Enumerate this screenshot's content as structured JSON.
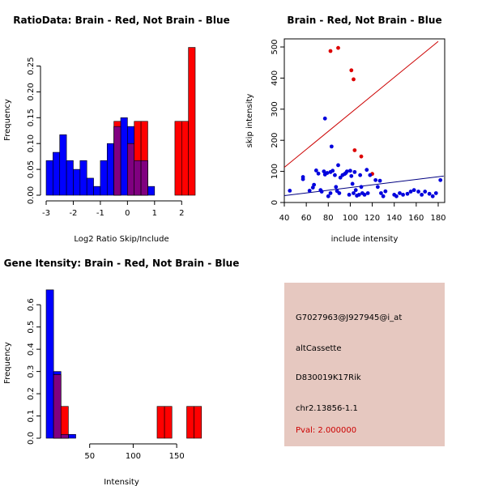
{
  "colors": {
    "red": "#ff0000",
    "blue": "#0000ff",
    "purple": "#800080",
    "point_red": "#dd0000",
    "point_blue": "#0000dd",
    "line_red": "#cc0000",
    "line_blue": "#000080",
    "panel_bg": "#e6c8c0"
  },
  "chart_data": [
    {
      "type": "bar",
      "title": "RatioData: Brain - Red, Not Brain - Blue",
      "xlabel": "Log2 Ratio Skip/Include",
      "ylabel": "Frequency",
      "xlim": [
        -3,
        2.5
      ],
      "ylim": [
        0,
        0.29
      ],
      "xticks": [
        -3,
        -2,
        -1,
        0,
        1,
        2
      ],
      "yticks": [
        0,
        0.05,
        0.1,
        0.15,
        0.2,
        0.25
      ],
      "ytick_labels": [
        "0.00",
        "0.05",
        "0.10",
        "0.15",
        "0.20",
        "0.25"
      ],
      "xtick_labels": [
        "-3",
        "-2",
        "-1",
        "0",
        "1",
        "2"
      ],
      "bin_width": 0.25,
      "series": [
        {
          "name": "Not Brain",
          "color": "blue",
          "bins": [
            [
              -3.0,
              0.067
            ],
            [
              -2.75,
              0.083
            ],
            [
              -2.5,
              0.117
            ],
            [
              -2.25,
              0.067
            ],
            [
              -2.0,
              0.05
            ],
            [
              -1.75,
              0.067
            ],
            [
              -1.5,
              0.033
            ],
            [
              -1.25,
              0.017
            ],
            [
              -1.0,
              0.067
            ],
            [
              -0.75,
              0.1
            ],
            [
              -0.5,
              0.133
            ],
            [
              -0.25,
              0.15
            ],
            [
              0.0,
              0.133
            ],
            [
              0.25,
              0.067
            ],
            [
              0.5,
              0.067
            ],
            [
              0.75,
              0.017
            ]
          ]
        },
        {
          "name": "Brain",
          "color": "red",
          "bins": [
            [
              -0.5,
              0.143
            ],
            [
              0.0,
              0.1
            ],
            [
              0.25,
              0.143
            ],
            [
              0.5,
              0.143
            ],
            [
              1.75,
              0.143
            ],
            [
              2.0,
              0.143
            ],
            [
              2.25,
              0.286
            ]
          ]
        }
      ]
    },
    {
      "type": "scatter",
      "title": "Brain - Red, Not Brain - Blue",
      "xlabel": "include intensity",
      "ylabel": "skip intensity",
      "xlim": [
        40,
        185
      ],
      "ylim": [
        0,
        520
      ],
      "xticks": [
        40,
        60,
        80,
        100,
        120,
        140,
        160,
        180
      ],
      "yticks": [
        0,
        100,
        200,
        300,
        400,
        500
      ],
      "xtick_labels": [
        "40",
        "60",
        "80",
        "100",
        "120",
        "140",
        "160",
        "180"
      ],
      "ytick_labels": [
        "0",
        "100",
        "200",
        "300",
        "400",
        "500"
      ],
      "lines": [
        {
          "color": "line_red",
          "x": [
            40,
            180
          ],
          "y": [
            113,
            518
          ]
        },
        {
          "color": "line_blue",
          "x": [
            40,
            185
          ],
          "y": [
            22,
            85
          ]
        }
      ],
      "series": [
        {
          "name": "Brain",
          "color": "point_red",
          "points": [
            [
              82,
              487
            ],
            [
              89,
              497
            ],
            [
              101,
              425
            ],
            [
              103,
              396
            ],
            [
              104,
              168
            ],
            [
              110,
              148
            ],
            [
              120,
              92
            ]
          ]
        },
        {
          "name": "Not Brain",
          "color": "point_blue",
          "points": [
            [
              45,
              38
            ],
            [
              57,
              82
            ],
            [
              57,
              75
            ],
            [
              63,
              38
            ],
            [
              66,
              48
            ],
            [
              67,
              57
            ],
            [
              69,
              103
            ],
            [
              71,
              93
            ],
            [
              73,
              40
            ],
            [
              74,
              35
            ],
            [
              76,
              100
            ],
            [
              77,
              270
            ],
            [
              77,
              90
            ],
            [
              79,
              95
            ],
            [
              80,
              20
            ],
            [
              82,
              98
            ],
            [
              82,
              30
            ],
            [
              83,
              180
            ],
            [
              84,
              102
            ],
            [
              86,
              88
            ],
            [
              87,
              50
            ],
            [
              88,
              37
            ],
            [
              89,
              120
            ],
            [
              90,
              30
            ],
            [
              91,
              80
            ],
            [
              93,
              88
            ],
            [
              95,
              92
            ],
            [
              96,
              95
            ],
            [
              97,
              100
            ],
            [
              99,
              25
            ],
            [
              100,
              102
            ],
            [
              101,
              85
            ],
            [
              102,
              60
            ],
            [
              103,
              30
            ],
            [
              104,
              98
            ],
            [
              105,
              40
            ],
            [
              106,
              22
            ],
            [
              108,
              25
            ],
            [
              109,
              88
            ],
            [
              110,
              50
            ],
            [
              111,
              30
            ],
            [
              113,
              25
            ],
            [
              115,
              105
            ],
            [
              116,
              30
            ],
            [
              118,
              88
            ],
            [
              123,
              72
            ],
            [
              125,
              50
            ],
            [
              127,
              70
            ],
            [
              128,
              30
            ],
            [
              130,
              20
            ],
            [
              132,
              36
            ],
            [
              140,
              25
            ],
            [
              142,
              20
            ],
            [
              145,
              30
            ],
            [
              148,
              25
            ],
            [
              152,
              28
            ],
            [
              155,
              35
            ],
            [
              158,
              40
            ],
            [
              162,
              35
            ],
            [
              165,
              25
            ],
            [
              168,
              35
            ],
            [
              172,
              28
            ],
            [
              175,
              20
            ],
            [
              178,
              30
            ],
            [
              182,
              72
            ]
          ]
        }
      ]
    },
    {
      "type": "bar",
      "title": "Gene Itensity: Brain - Red, Not Brain - Blue",
      "xlabel": "Intensity",
      "ylabel": "Frequency",
      "xlim": [
        0,
        175
      ],
      "ylim": [
        0,
        0.67
      ],
      "xticks": [
        50,
        100,
        150
      ],
      "xtick_labels": [
        "50",
        "100",
        "150"
      ],
      "yticks": [
        0,
        0.1,
        0.2,
        0.3,
        0.4,
        0.5,
        0.6
      ],
      "ytick_labels": [
        "0.0",
        "0.1",
        "0.2",
        "0.3",
        "0.4",
        "0.5",
        "0.6"
      ],
      "bin_width": 8.5,
      "series": [
        {
          "name": "Not Brain",
          "color": "blue",
          "bins": [
            [
              0,
              0.667
            ],
            [
              8.5,
              0.3
            ],
            [
              17,
              0.017
            ],
            [
              25.5,
              0.017
            ]
          ]
        },
        {
          "name": "Brain",
          "color": "red",
          "bins": [
            [
              8.5,
              0.286
            ],
            [
              17,
              0.143
            ],
            [
              127.5,
              0.143
            ],
            [
              136,
              0.143
            ],
            [
              161.5,
              0.143
            ],
            [
              170,
              0.143
            ]
          ]
        }
      ]
    }
  ],
  "info_panel": {
    "probe_id": "G7027963@J927945@i_at",
    "event_type": "altCassette",
    "gene": "D830019K17Rik",
    "location": "chr2.13856-1.1",
    "pval": "Pval: 2.000000"
  }
}
